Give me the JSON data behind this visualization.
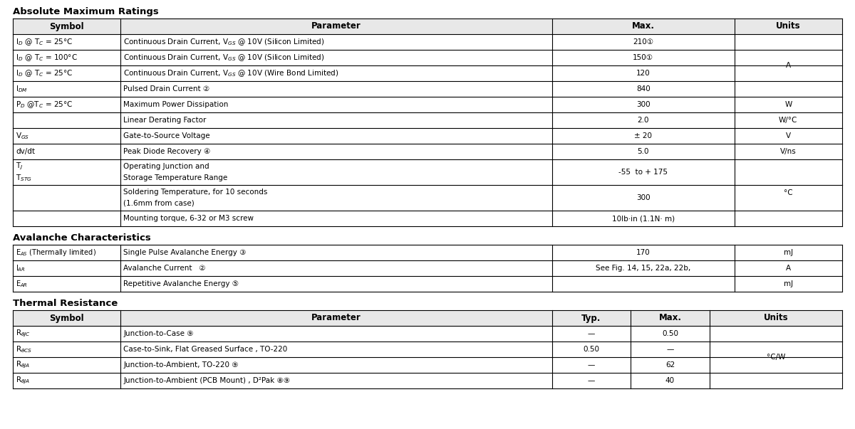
{
  "bg_color": "#ffffff",
  "text_color": "#000000",
  "header_bg": "#e8e8e8",
  "border_color": "#000000",
  "section1_title": "Absolute Maximum Ratings",
  "section1_headers": [
    "Symbol",
    "Parameter",
    "Max.",
    "Units"
  ],
  "section2_title": "Avalanche Characteristics",
  "section3_title": "Thermal Resistance",
  "section3_headers": [
    "Symbol",
    "Parameter",
    "Typ.",
    "Max.",
    "Units"
  ]
}
